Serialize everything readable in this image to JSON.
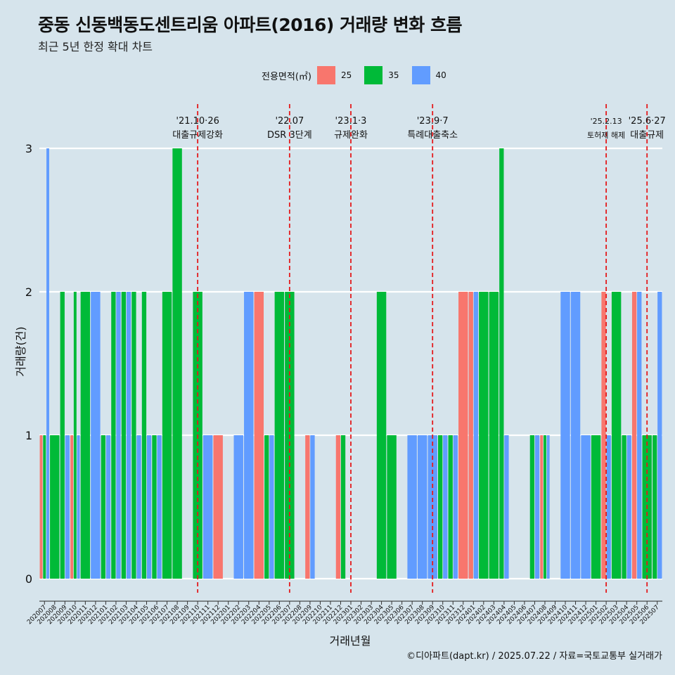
{
  "title": "중동 신동백동도센트리움 아파트(2016) 거래량 변화 흐름",
  "subtitle": "최근 5년 한정 확대 차트",
  "caption": "©디아파트(dapt.kr) / 2025.07.22 / 자료=국토교통부 실거래가",
  "colors": {
    "background": "#d6e4ec",
    "s25": "#f8766d",
    "s35": "#00ba38",
    "s40": "#619cff",
    "vline": "#e41a1c",
    "grid": "#ffffff"
  },
  "chart_data": {
    "type": "bar",
    "title": "중동 신동백동도센트리움 아파트(2016) 거래량 변화 흐름",
    "subtitle": "최근 5년 한정 확대 차트",
    "xlabel": "거래년월",
    "ylabel": "거래량(건)",
    "ylim": [
      0,
      3
    ],
    "yticks": [
      0,
      1,
      2,
      3
    ],
    "grid": true,
    "legend": {
      "title": "전용면적(㎡)",
      "position": "top",
      "entries": [
        "25",
        "35",
        "40"
      ]
    },
    "categories": [
      "202007",
      "202008",
      "202009",
      "202010",
      "202011",
      "202012",
      "202101",
      "202102",
      "202103",
      "202104",
      "202105",
      "202106",
      "202107",
      "202108",
      "202109",
      "202110",
      "202111",
      "202112",
      "202201",
      "202202",
      "202203",
      "202204",
      "202205",
      "202206",
      "202207",
      "202208",
      "202209",
      "202210",
      "202211",
      "202212",
      "202301",
      "202302",
      "202303",
      "202304",
      "202305",
      "202306",
      "202307",
      "202308",
      "202309",
      "202310",
      "202311",
      "202312",
      "202401",
      "202402",
      "202403",
      "202404",
      "202405",
      "202406",
      "202407",
      "202408",
      "202409",
      "202410",
      "202411",
      "202412",
      "202501",
      "202502",
      "202503",
      "202504",
      "202505",
      "202506",
      "202507"
    ],
    "series": [
      {
        "name": "25",
        "values": [
          1,
          0,
          0,
          1,
          0,
          0,
          0,
          0,
          0,
          0,
          0,
          0,
          0,
          0,
          0,
          0,
          0,
          1,
          0,
          0,
          0,
          2,
          0,
          0,
          0,
          0,
          1,
          0,
          0,
          1,
          0,
          0,
          0,
          0,
          0,
          0,
          0,
          0,
          0,
          0,
          0,
          2,
          2,
          0,
          0,
          0,
          0,
          0,
          0,
          1,
          0,
          0,
          0,
          0,
          0,
          2,
          0,
          0,
          2,
          0,
          0
        ]
      },
      {
        "name": "35",
        "values": [
          1,
          1,
          2,
          2,
          2,
          0,
          1,
          2,
          2,
          2,
          2,
          1,
          2,
          3,
          0,
          2,
          0,
          0,
          0,
          0,
          0,
          0,
          1,
          2,
          2,
          0,
          0,
          0,
          0,
          1,
          0,
          0,
          0,
          2,
          1,
          0,
          0,
          0,
          0,
          1,
          1,
          0,
          0,
          2,
          2,
          3,
          0,
          0,
          1,
          1,
          0,
          0,
          0,
          0,
          1,
          0,
          2,
          1,
          0,
          1,
          1
        ]
      },
      {
        "name": "40",
        "values": [
          3,
          0,
          1,
          1,
          0,
          2,
          1,
          2,
          2,
          1,
          1,
          1,
          0,
          0,
          0,
          0,
          1,
          0,
          0,
          1,
          2,
          0,
          1,
          0,
          0,
          0,
          1,
          0,
          0,
          0,
          0,
          0,
          0,
          0,
          0,
          0,
          1,
          1,
          1,
          1,
          1,
          0,
          2,
          0,
          0,
          1,
          0,
          0,
          1,
          1,
          0,
          2,
          2,
          1,
          0,
          1,
          0,
          1,
          2,
          0,
          2
        ]
      }
    ],
    "annotations": [
      {
        "x": "202110",
        "line1": "'21.10·26",
        "line2": "대출규제강화"
      },
      {
        "x": "202207",
        "line1": "'22.07",
        "line2": "DSR 3단계"
      },
      {
        "x": "202301",
        "line1": "'23.1·3",
        "line2": "규제완화"
      },
      {
        "x": "202309",
        "line1": "'23.9·7",
        "line2": "특례대출축소"
      },
      {
        "x": "202502",
        "line1": "'25.2.13",
        "line2": "토허제 해제"
      },
      {
        "x": "202506",
        "line1": "'25.6·27",
        "line2": "대출규제"
      }
    ]
  }
}
